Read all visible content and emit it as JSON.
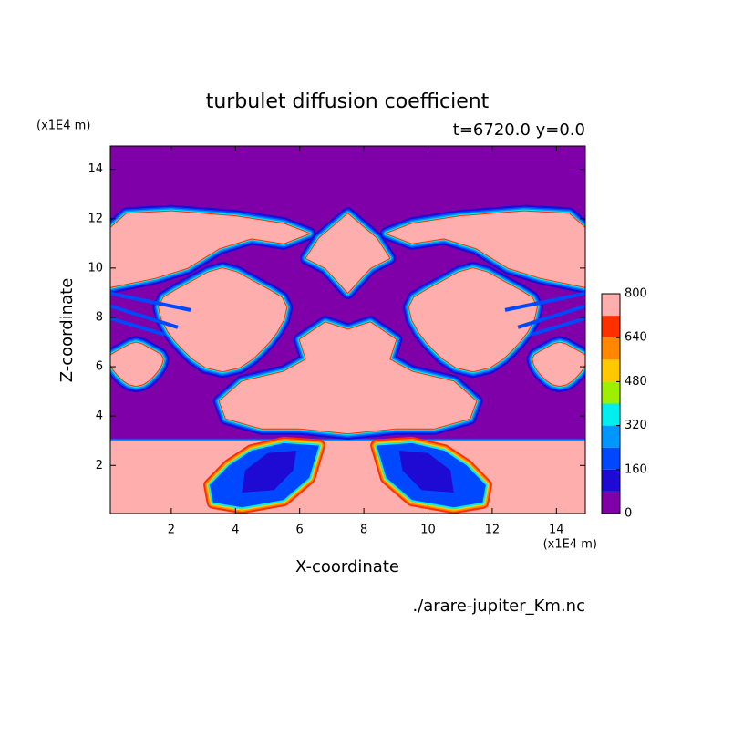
{
  "chart_data": {
    "type": "contour",
    "title": "turbulet diffusion coefficient",
    "subtitle": "t=6720.0 y=0.0",
    "x_label": "X-coordinate",
    "y_label": "Z-coordinate",
    "x_unit": "(x1E4 m)",
    "y_unit": "(x1E4 m)",
    "source": "./arare-jupiter_Km.nc",
    "xlim": [
      0.1,
      14.9
    ],
    "ylim": [
      0.05,
      14.95
    ],
    "xticks": [
      2,
      4,
      6,
      8,
      10,
      12,
      14
    ],
    "yticks": [
      2,
      4,
      6,
      8,
      10,
      12,
      14
    ],
    "levels": [
      0,
      80,
      160,
      240,
      320,
      400,
      480,
      560,
      640,
      720,
      800
    ],
    "colorbar_ticks": [
      0,
      160,
      320,
      480,
      640,
      800
    ],
    "level_colors": [
      "#7f00a8",
      "#1e0ad2",
      "#0048ff",
      "#0096ff",
      "#00eeee",
      "#9ef000",
      "#ffc800",
      "#ff8800",
      "#ff3000",
      "#ffaeae"
    ]
  }
}
